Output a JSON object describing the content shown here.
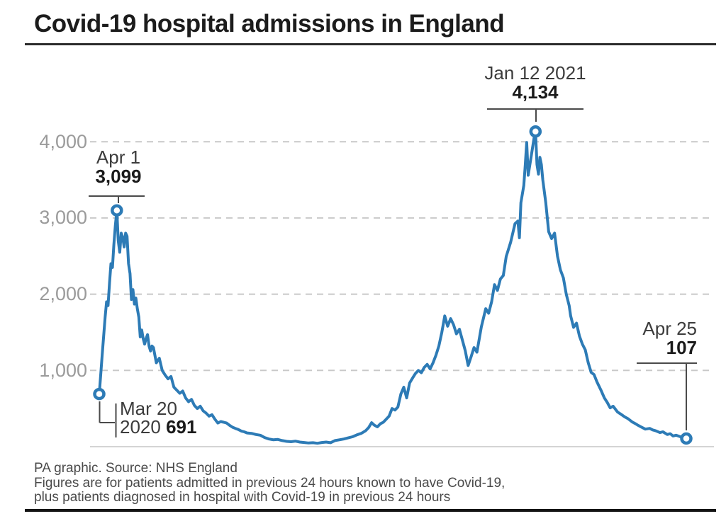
{
  "title": "Covid-19 hospital admissions in England",
  "annotations": {
    "first_peak": {
      "date": "Apr 1",
      "value": "3,099"
    },
    "second_peak": {
      "date": "Jan 12 2021",
      "value": "4,134"
    },
    "start": {
      "date_line1": "Mar 20",
      "year": "2020",
      "value": "691"
    },
    "end": {
      "date": "Apr 25",
      "value": "107"
    }
  },
  "footer": {
    "source": "PA graphic. Source: NHS England",
    "note_line1": "Figures are for patients admitted in previous 24 hours known to have Covid-19,",
    "note_line2": "plus patients diagnosed in hospital with Covid-19 in previous 24 hours"
  },
  "colors": {
    "line": "#2d7bb6",
    "grid": "#c9c9c9",
    "baseline": "#d4d4d4",
    "axis_label": "#9b9b9b",
    "connector": "#4a4a4a"
  },
  "chart_data": {
    "type": "line",
    "title": "Covid-19 hospital admissions in England",
    "x_start": "2020-03-20",
    "x_end": "2021-04-25",
    "ylim": [
      0,
      4300
    ],
    "yticks": [
      1000,
      2000,
      3000,
      4000
    ],
    "ytick_labels": [
      "1,000",
      "2,000",
      "3,000",
      "4,000"
    ],
    "grid": "horizontal-dashed",
    "legend": "none",
    "labeled_points": [
      {
        "date": "2020-03-20",
        "value": 691,
        "label": "Mar 20 2020 691"
      },
      {
        "date": "2020-04-01",
        "value": 3099,
        "label": "Apr 1 3,099"
      },
      {
        "date": "2021-01-12",
        "value": 4134,
        "label": "Jan 12 2021 4,134"
      },
      {
        "date": "2021-04-25",
        "value": 107,
        "label": "Apr 25 107"
      }
    ],
    "series": [
      {
        "name": "Daily Covid-19 hospital admissions",
        "points": [
          [
            "2020-03-20",
            691
          ],
          [
            "2020-03-21",
            950
          ],
          [
            "2020-03-22",
            1200
          ],
          [
            "2020-03-23",
            1450
          ],
          [
            "2020-03-24",
            1700
          ],
          [
            "2020-03-25",
            1900
          ],
          [
            "2020-03-26",
            1850
          ],
          [
            "2020-03-27",
            2150
          ],
          [
            "2020-03-28",
            2400
          ],
          [
            "2020-03-29",
            2350
          ],
          [
            "2020-03-30",
            2650
          ],
          [
            "2020-03-31",
            2900
          ],
          [
            "2020-04-01",
            3099
          ],
          [
            "2020-04-02",
            2700
          ],
          [
            "2020-04-03",
            2550
          ],
          [
            "2020-04-04",
            2800
          ],
          [
            "2020-04-05",
            2750
          ],
          [
            "2020-04-06",
            2620
          ],
          [
            "2020-04-07",
            2800
          ],
          [
            "2020-04-08",
            2760
          ],
          [
            "2020-04-09",
            2400
          ],
          [
            "2020-04-10",
            2270
          ],
          [
            "2020-04-11",
            1930
          ],
          [
            "2020-04-12",
            2060
          ],
          [
            "2020-04-13",
            1870
          ],
          [
            "2020-04-14",
            1950
          ],
          [
            "2020-04-15",
            1810
          ],
          [
            "2020-04-16",
            1700
          ],
          [
            "2020-04-17",
            1440
          ],
          [
            "2020-04-18",
            1530
          ],
          [
            "2020-04-19",
            1420
          ],
          [
            "2020-04-20",
            1345
          ],
          [
            "2020-04-21",
            1420
          ],
          [
            "2020-04-22",
            1470
          ],
          [
            "2020-04-23",
            1320
          ],
          [
            "2020-04-24",
            1255
          ],
          [
            "2020-04-25",
            1320
          ],
          [
            "2020-04-26",
            1300
          ],
          [
            "2020-04-28",
            1100
          ],
          [
            "2020-04-30",
            1160
          ],
          [
            "2020-05-02",
            1000
          ],
          [
            "2020-05-04",
            940
          ],
          [
            "2020-05-06",
            890
          ],
          [
            "2020-05-08",
            920
          ],
          [
            "2020-05-10",
            780
          ],
          [
            "2020-05-12",
            740
          ],
          [
            "2020-05-14",
            700
          ],
          [
            "2020-05-16",
            730
          ],
          [
            "2020-05-18",
            640
          ],
          [
            "2020-05-20",
            590
          ],
          [
            "2020-05-22",
            620
          ],
          [
            "2020-05-24",
            540
          ],
          [
            "2020-05-26",
            500
          ],
          [
            "2020-05-28",
            530
          ],
          [
            "2020-05-30",
            470
          ],
          [
            "2020-06-01",
            440
          ],
          [
            "2020-06-03",
            400
          ],
          [
            "2020-06-05",
            420
          ],
          [
            "2020-06-07",
            360
          ],
          [
            "2020-06-09",
            310
          ],
          [
            "2020-06-11",
            330
          ],
          [
            "2020-06-13",
            320
          ],
          [
            "2020-06-15",
            310
          ],
          [
            "2020-06-17",
            280
          ],
          [
            "2020-06-19",
            255
          ],
          [
            "2020-06-21",
            240
          ],
          [
            "2020-06-23",
            225
          ],
          [
            "2020-06-25",
            205
          ],
          [
            "2020-06-27",
            195
          ],
          [
            "2020-06-29",
            180
          ],
          [
            "2020-07-02",
            175
          ],
          [
            "2020-07-05",
            160
          ],
          [
            "2020-07-08",
            150
          ],
          [
            "2020-07-11",
            120
          ],
          [
            "2020-07-14",
            100
          ],
          [
            "2020-07-17",
            90
          ],
          [
            "2020-07-20",
            95
          ],
          [
            "2020-07-23",
            80
          ],
          [
            "2020-07-26",
            70
          ],
          [
            "2020-07-29",
            65
          ],
          [
            "2020-08-01",
            72
          ],
          [
            "2020-08-04",
            60
          ],
          [
            "2020-08-07",
            55
          ],
          [
            "2020-08-10",
            48
          ],
          [
            "2020-08-13",
            52
          ],
          [
            "2020-08-16",
            45
          ],
          [
            "2020-08-19",
            55
          ],
          [
            "2020-08-22",
            60
          ],
          [
            "2020-08-25",
            52
          ],
          [
            "2020-08-28",
            80
          ],
          [
            "2020-08-31",
            90
          ],
          [
            "2020-09-03",
            100
          ],
          [
            "2020-09-06",
            115
          ],
          [
            "2020-09-09",
            130
          ],
          [
            "2020-09-12",
            155
          ],
          [
            "2020-09-15",
            175
          ],
          [
            "2020-09-18",
            210
          ],
          [
            "2020-09-20",
            250
          ],
          [
            "2020-09-22",
            315
          ],
          [
            "2020-09-24",
            280
          ],
          [
            "2020-09-26",
            260
          ],
          [
            "2020-09-28",
            300
          ],
          [
            "2020-09-30",
            320
          ],
          [
            "2020-10-02",
            360
          ],
          [
            "2020-10-04",
            400
          ],
          [
            "2020-10-06",
            500
          ],
          [
            "2020-10-08",
            480
          ],
          [
            "2020-10-10",
            520
          ],
          [
            "2020-10-12",
            690
          ],
          [
            "2020-10-14",
            780
          ],
          [
            "2020-10-16",
            640
          ],
          [
            "2020-10-18",
            835
          ],
          [
            "2020-10-20",
            900
          ],
          [
            "2020-10-22",
            960
          ],
          [
            "2020-10-24",
            1000
          ],
          [
            "2020-10-26",
            970
          ],
          [
            "2020-10-28",
            1040
          ],
          [
            "2020-10-30",
            1080
          ],
          [
            "2020-11-01",
            1020
          ],
          [
            "2020-11-03",
            1100
          ],
          [
            "2020-11-05",
            1200
          ],
          [
            "2020-11-07",
            1320
          ],
          [
            "2020-11-09",
            1500
          ],
          [
            "2020-11-11",
            1715
          ],
          [
            "2020-11-13",
            1580
          ],
          [
            "2020-11-15",
            1680
          ],
          [
            "2020-11-17",
            1600
          ],
          [
            "2020-11-19",
            1480
          ],
          [
            "2020-11-21",
            1540
          ],
          [
            "2020-11-23",
            1400
          ],
          [
            "2020-11-25",
            1260
          ],
          [
            "2020-11-27",
            1065
          ],
          [
            "2020-11-29",
            1180
          ],
          [
            "2020-12-01",
            1300
          ],
          [
            "2020-12-03",
            1240
          ],
          [
            "2020-12-06",
            1570
          ],
          [
            "2020-12-09",
            1810
          ],
          [
            "2020-12-11",
            1750
          ],
          [
            "2020-12-13",
            1900
          ],
          [
            "2020-12-15",
            2125
          ],
          [
            "2020-12-17",
            2050
          ],
          [
            "2020-12-19",
            2200
          ],
          [
            "2020-12-21",
            2245
          ],
          [
            "2020-12-23",
            2495
          ],
          [
            "2020-12-26",
            2680
          ],
          [
            "2020-12-29",
            2925
          ],
          [
            "2020-12-31",
            2960
          ],
          [
            "2021-01-01",
            2740
          ],
          [
            "2021-01-02",
            3200
          ],
          [
            "2021-01-04",
            3425
          ],
          [
            "2021-01-05",
            3700
          ],
          [
            "2021-01-06",
            3990
          ],
          [
            "2021-01-07",
            3560
          ],
          [
            "2021-01-09",
            3800
          ],
          [
            "2021-01-11",
            4050
          ],
          [
            "2021-01-12",
            4134
          ],
          [
            "2021-01-13",
            3700
          ],
          [
            "2021-01-14",
            3575
          ],
          [
            "2021-01-15",
            3795
          ],
          [
            "2021-01-16",
            3700
          ],
          [
            "2021-01-17",
            3500
          ],
          [
            "2021-01-19",
            3200
          ],
          [
            "2021-01-21",
            2820
          ],
          [
            "2021-01-23",
            2730
          ],
          [
            "2021-01-25",
            2800
          ],
          [
            "2021-01-27",
            2500
          ],
          [
            "2021-01-29",
            2320
          ],
          [
            "2021-01-31",
            2215
          ],
          [
            "2021-02-02",
            2000
          ],
          [
            "2021-02-04",
            1850
          ],
          [
            "2021-02-05",
            1715
          ],
          [
            "2021-02-07",
            1565
          ],
          [
            "2021-02-09",
            1620
          ],
          [
            "2021-02-11",
            1450
          ],
          [
            "2021-02-13",
            1345
          ],
          [
            "2021-02-15",
            1270
          ],
          [
            "2021-02-17",
            1100
          ],
          [
            "2021-02-19",
            975
          ],
          [
            "2021-02-21",
            945
          ],
          [
            "2021-02-23",
            850
          ],
          [
            "2021-02-26",
            730
          ],
          [
            "2021-02-28",
            640
          ],
          [
            "2021-03-02",
            580
          ],
          [
            "2021-03-04",
            510
          ],
          [
            "2021-03-06",
            530
          ],
          [
            "2021-03-09",
            455
          ],
          [
            "2021-03-11",
            430
          ],
          [
            "2021-03-14",
            390
          ],
          [
            "2021-03-16",
            370
          ],
          [
            "2021-03-19",
            325
          ],
          [
            "2021-03-21",
            305
          ],
          [
            "2021-03-23",
            280
          ],
          [
            "2021-03-25",
            260
          ],
          [
            "2021-03-28",
            230
          ],
          [
            "2021-03-31",
            240
          ],
          [
            "2021-04-02",
            220
          ],
          [
            "2021-04-04",
            210
          ],
          [
            "2021-04-07",
            185
          ],
          [
            "2021-04-09",
            195
          ],
          [
            "2021-04-12",
            160
          ],
          [
            "2021-04-14",
            170
          ],
          [
            "2021-04-16",
            140
          ],
          [
            "2021-04-18",
            150
          ],
          [
            "2021-04-21",
            130
          ],
          [
            "2021-04-23",
            120
          ],
          [
            "2021-04-25",
            107
          ]
        ]
      }
    ]
  }
}
